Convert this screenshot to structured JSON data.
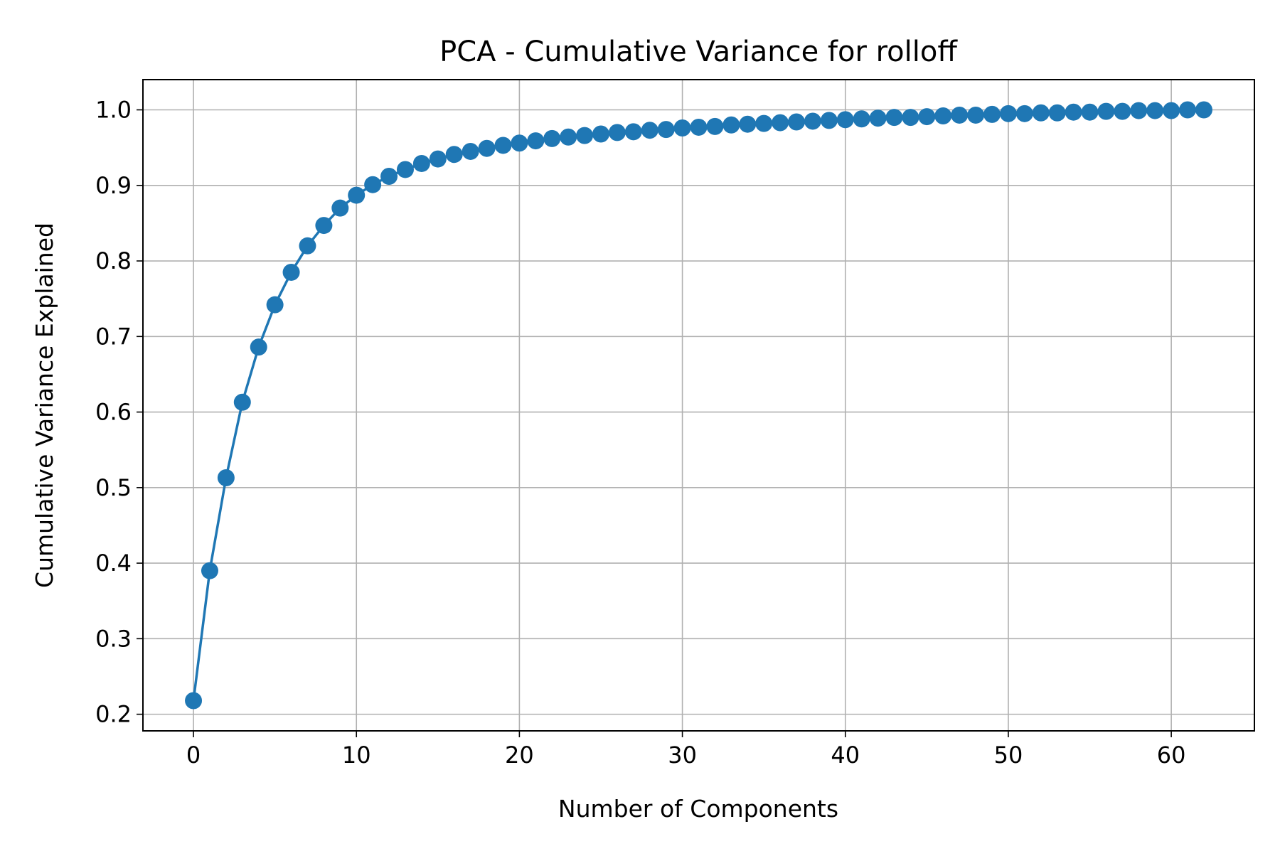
{
  "chart_data": {
    "type": "line",
    "title": "PCA - Cumulative Variance for rolloff",
    "xlabel": "Number of Components",
    "ylabel": "Cumulative Variance Explained",
    "xlim": [
      -3.1,
      65.1
    ],
    "ylim": [
      0.178,
      1.04
    ],
    "xticks": [
      0,
      10,
      20,
      30,
      40,
      50,
      60
    ],
    "xtick_labels": [
      "0",
      "10",
      "20",
      "30",
      "40",
      "50",
      "60"
    ],
    "yticks": [
      0.2,
      0.3,
      0.4,
      0.5,
      0.6,
      0.7,
      0.8,
      0.9,
      1.0
    ],
    "ytick_labels": [
      "0.2",
      "0.3",
      "0.4",
      "0.5",
      "0.6",
      "0.7",
      "0.8",
      "0.9",
      "1.0"
    ],
    "grid": true,
    "marker": "circle",
    "color": "#1f77b4",
    "series": [
      {
        "x": [
          0,
          1,
          2,
          3,
          4,
          5,
          6,
          7,
          8,
          9,
          10,
          11,
          12,
          13,
          14,
          15,
          16,
          17,
          18,
          19,
          20,
          21,
          22,
          23,
          24,
          25,
          26,
          27,
          28,
          29,
          30,
          31,
          32,
          33,
          34,
          35,
          36,
          37,
          38,
          39,
          40,
          41,
          42,
          43,
          44,
          45,
          46,
          47,
          48,
          49,
          50,
          51,
          52,
          53,
          54,
          55,
          56,
          57,
          58,
          59,
          60,
          61,
          62
        ],
        "values": [
          0.218,
          0.39,
          0.513,
          0.613,
          0.686,
          0.742,
          0.785,
          0.82,
          0.847,
          0.87,
          0.887,
          0.901,
          0.912,
          0.921,
          0.929,
          0.935,
          0.941,
          0.945,
          0.949,
          0.953,
          0.956,
          0.959,
          0.962,
          0.964,
          0.966,
          0.968,
          0.97,
          0.971,
          0.973,
          0.974,
          0.976,
          0.977,
          0.978,
          0.98,
          0.981,
          0.982,
          0.983,
          0.984,
          0.985,
          0.986,
          0.987,
          0.988,
          0.989,
          0.99,
          0.99,
          0.991,
          0.992,
          0.993,
          0.993,
          0.994,
          0.995,
          0.995,
          0.996,
          0.996,
          0.997,
          0.997,
          0.998,
          0.998,
          0.999,
          0.999,
          0.999,
          1.0,
          1.0
        ]
      }
    ]
  }
}
